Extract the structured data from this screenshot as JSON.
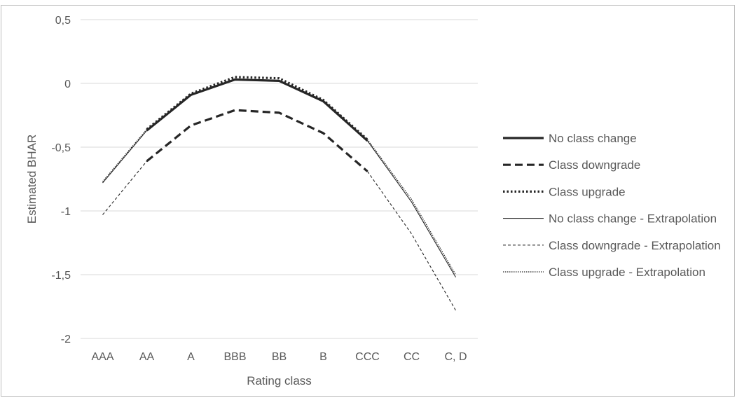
{
  "chart_data": {
    "type": "line",
    "title": "",
    "xlabel": "Rating class",
    "ylabel": "Estimated BHAR",
    "categories": [
      "AAA",
      "AA",
      "A",
      "BBB",
      "BB",
      "B",
      "CCC",
      "CC",
      "C, D"
    ],
    "ylim": [
      -2,
      0.5
    ],
    "yticks": [
      0.5,
      0,
      -0.5,
      -1,
      -1.5,
      -2
    ],
    "ytick_labels": [
      "0,5",
      "0",
      "-0,5",
      "-1",
      "-1,5",
      "-2"
    ],
    "grid": "horizontal",
    "legend_position": "right",
    "series": [
      {
        "name": "No class change",
        "style": "solid-thick",
        "color": "#262626",
        "values": [
          null,
          -0.37,
          -0.09,
          0.03,
          0.02,
          -0.14,
          -0.45,
          null,
          null
        ]
      },
      {
        "name": "Class downgrade",
        "style": "dashed-thick",
        "color": "#262626",
        "values": [
          null,
          -0.61,
          -0.33,
          -0.21,
          -0.23,
          -0.39,
          -0.69,
          null,
          null
        ]
      },
      {
        "name": "Class upgrade",
        "style": "dotted-thick",
        "color": "#262626",
        "values": [
          null,
          -0.36,
          -0.08,
          0.05,
          0.04,
          -0.13,
          -0.44,
          null,
          null
        ]
      },
      {
        "name": "No class change - Extrapolation",
        "style": "solid-thin",
        "color": "#262626",
        "values": [
          -0.78,
          -0.37,
          null,
          null,
          null,
          null,
          -0.45,
          -0.93,
          -1.52
        ]
      },
      {
        "name": "Class downgrade - Extrapolation",
        "style": "dashed-thin",
        "color": "#262626",
        "values": [
          -1.03,
          -0.61,
          null,
          null,
          null,
          null,
          -0.69,
          -1.18,
          -1.78
        ]
      },
      {
        "name": "Class upgrade - Extrapolation",
        "style": "dotted-thin",
        "color": "#262626",
        "values": [
          -0.77,
          -0.36,
          null,
          null,
          null,
          null,
          -0.44,
          -0.91,
          -1.5
        ]
      }
    ]
  }
}
